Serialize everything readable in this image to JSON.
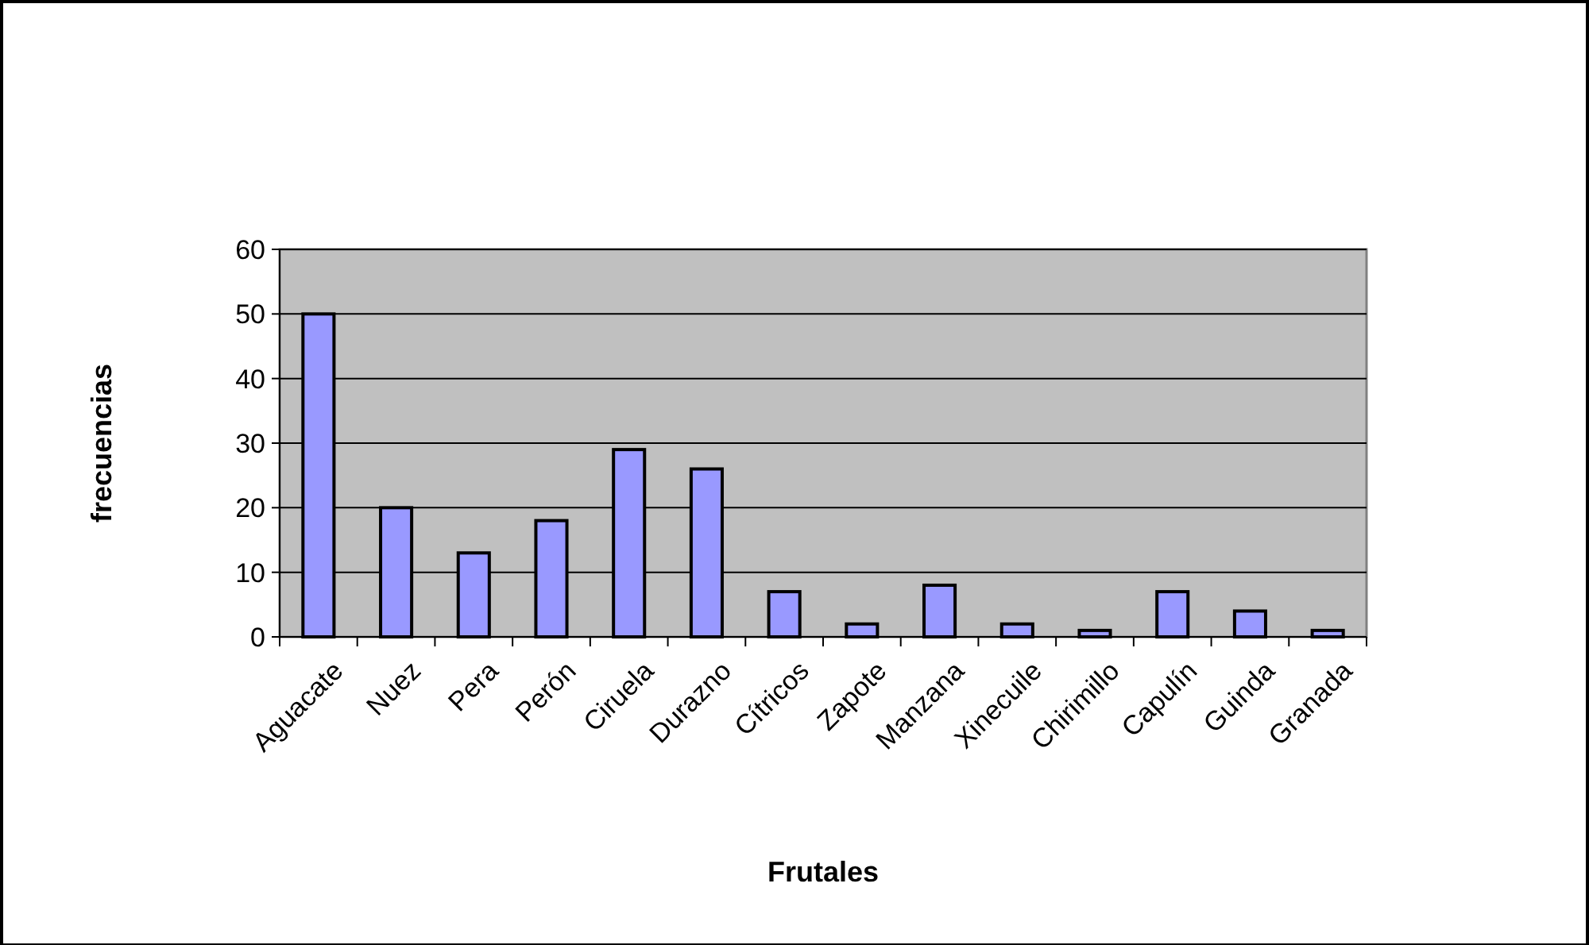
{
  "chart_data": {
    "type": "bar",
    "xlabel": "Frutales",
    "ylabel": "frecuencias",
    "categories": [
      "Aguacate",
      "Nuez",
      "Pera",
      "Perón",
      "Ciruela",
      "Durazno",
      "Cítricos",
      "Zapote",
      "Manzana",
      "Xinecuile",
      "Chirimillo",
      "Capulín",
      "Guinda",
      "Granada"
    ],
    "values": [
      50,
      20,
      13,
      18,
      29,
      26,
      7,
      2,
      8,
      2,
      1,
      7,
      4,
      1
    ],
    "color": "#9999ff",
    "ylim": [
      0,
      60
    ],
    "yticks": [
      0,
      10,
      20,
      30,
      40,
      50,
      60
    ],
    "grid": "y"
  }
}
